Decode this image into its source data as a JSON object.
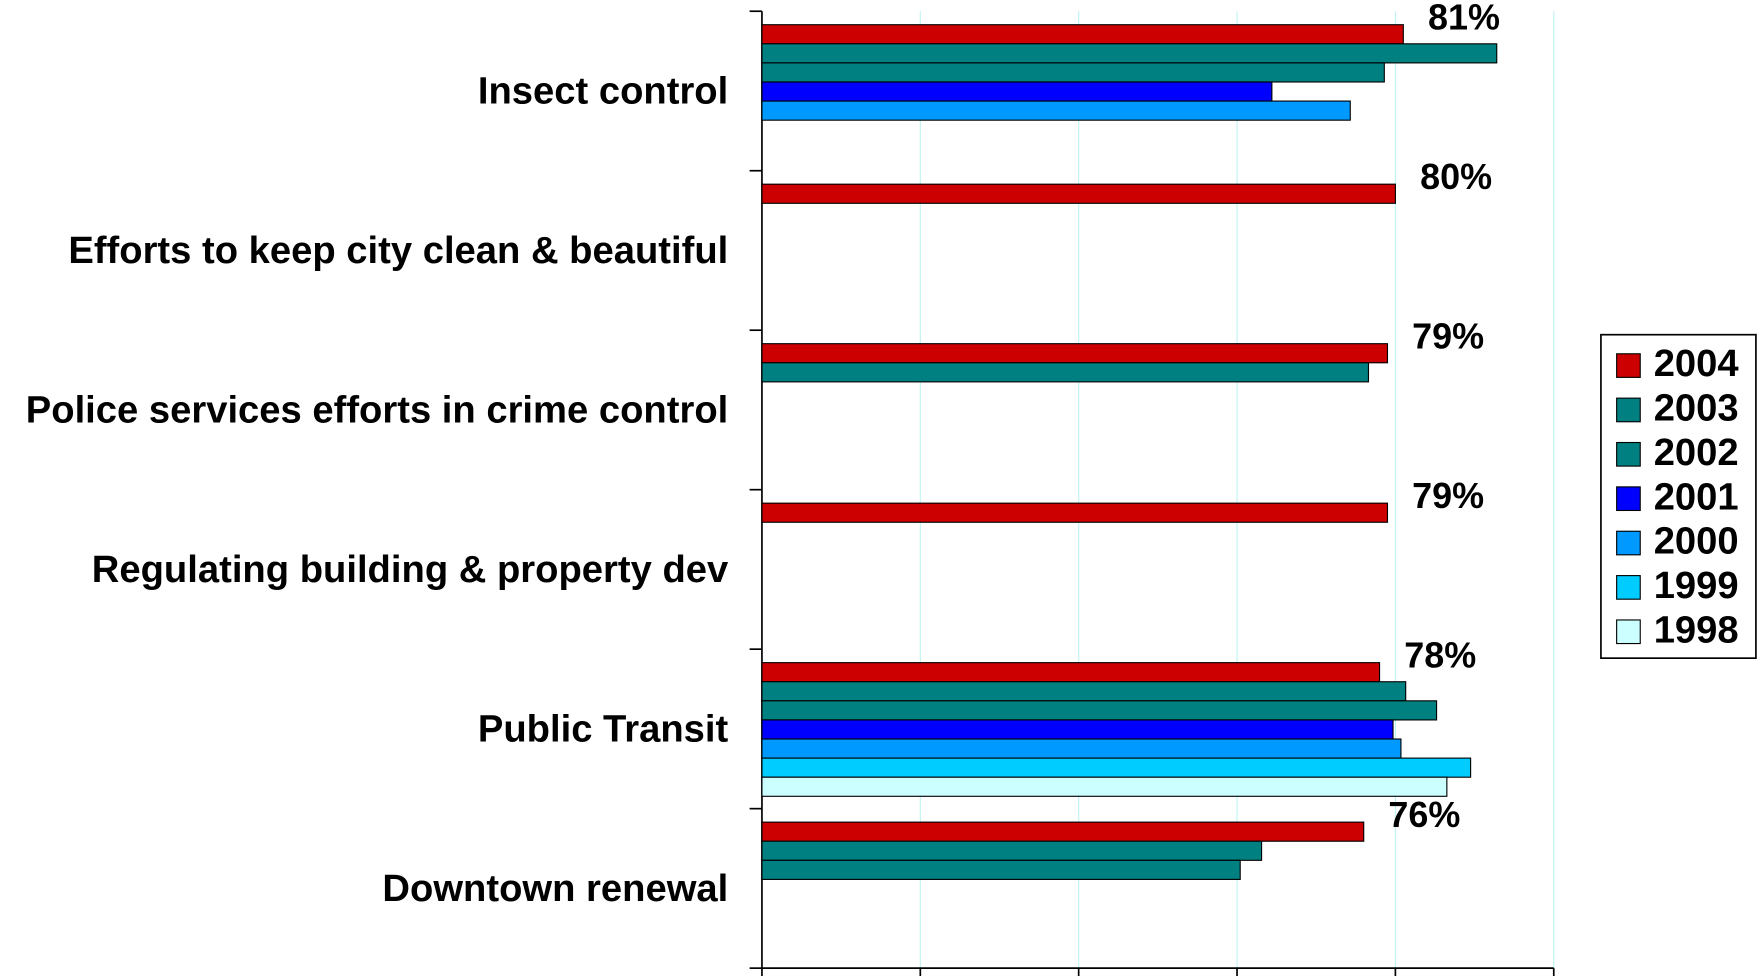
{
  "chart_data": {
    "type": "bar",
    "orientation": "horizontal",
    "categories": [
      "Insect control",
      "Efforts to keep city clean & beautiful",
      "Police services efforts in crime control",
      "Regulating building & property dev",
      "Public Transit",
      "Downtown renewal"
    ],
    "series": [
      {
        "name": "2004",
        "color": "#cc0000",
        "values": [
          81,
          80,
          79,
          79,
          78,
          76
        ],
        "value_labels": [
          "81%",
          "80%",
          "79%",
          "79%",
          "78%",
          "76%"
        ]
      },
      {
        "name": "2003",
        "color": "#008080",
        "values": [
          92.8,
          null,
          76.6,
          null,
          81.3,
          63.1
        ]
      },
      {
        "name": "2002",
        "color": "#008080",
        "values": [
          78.6,
          null,
          null,
          null,
          85.2,
          60.4
        ]
      },
      {
        "name": "2001",
        "color": "#0000ff",
        "values": [
          64.4,
          null,
          null,
          null,
          79.7,
          null
        ]
      },
      {
        "name": "2000",
        "color": "#0099ff",
        "values": [
          74.3,
          null,
          null,
          null,
          80.7,
          null
        ]
      },
      {
        "name": "1999",
        "color": "#00ccff",
        "values": [
          null,
          null,
          null,
          null,
          89.5,
          null
        ]
      },
      {
        "name": "1998",
        "color": "#ccffff",
        "values": [
          null,
          null,
          null,
          null,
          86.5,
          null
        ]
      }
    ],
    "xlim": [
      0,
      100
    ],
    "xticks": [
      0,
      20,
      40,
      60,
      80,
      100
    ],
    "grid": true,
    "legend": "right"
  }
}
